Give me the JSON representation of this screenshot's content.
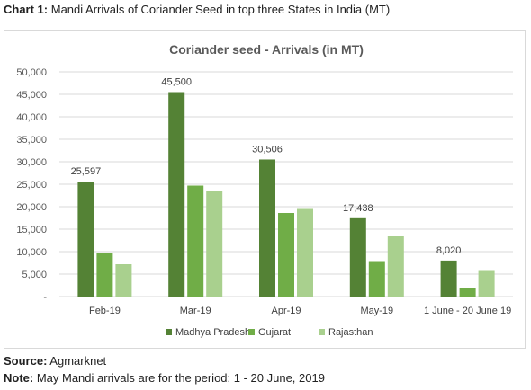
{
  "caption": {
    "label": "Chart 1:",
    "text": " Mandi Arrivals of Coriander Seed in top three States in India (MT)"
  },
  "footer": {
    "source_label": "Source:",
    "source_text": " Agmarknet",
    "note_label": "Note:",
    "note_text": " May Mandi arrivals are for the period: 1 - 20 June, 2019"
  },
  "chart_data": {
    "type": "bar",
    "title": "Coriander seed - Arrivals (in MT)",
    "categories": [
      "Feb-19",
      "Mar-19",
      "Apr-19",
      "May-19",
      "1 June - 20 June 19"
    ],
    "series": [
      {
        "name": "Madhya Pradesh",
        "color": "#548235",
        "values": [
          25597,
          45500,
          30506,
          17438,
          8020
        ]
      },
      {
        "name": "Gujarat",
        "color": "#70ad47",
        "values": [
          9700,
          24700,
          18600,
          7700,
          1900
        ]
      },
      {
        "name": "Rajasthan",
        "color": "#a9d08e",
        "values": [
          7200,
          23500,
          19500,
          13400,
          5700
        ]
      }
    ],
    "data_labels": {
      "series": "Madhya Pradesh",
      "text": [
        "25,597",
        "45,500",
        "30,506",
        "17,438",
        "8,020"
      ]
    },
    "yticks": [
      "-",
      "5,000",
      "10,000",
      "15,000",
      "20,000",
      "25,000",
      "30,000",
      "35,000",
      "40,000",
      "45,000",
      "50,000"
    ],
    "ylim": [
      0,
      50000
    ],
    "grid": true,
    "legend": "bottom"
  }
}
